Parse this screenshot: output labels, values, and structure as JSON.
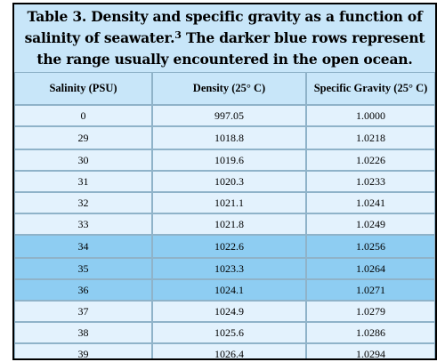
{
  "caption": {
    "line1": "Table 3.  Density and specific gravity as a function of",
    "line2_pre": "salinity of seawater.",
    "line2_ref": "3",
    "line2_post": " The darker blue rows represent",
    "line3": "the range usually encountered in the open ocean."
  },
  "headers": {
    "salinity": "Salinity (PSU)",
    "density": "Density (25° C)",
    "gravity": "Specific Gravity (25° C)"
  },
  "rows": [
    {
      "salinity": "0",
      "density": "997.05",
      "gravity": "1.0000",
      "dark": false
    },
    {
      "salinity": "29",
      "density": "1018.8",
      "gravity": "1.0218",
      "dark": false
    },
    {
      "salinity": "30",
      "density": "1019.6",
      "gravity": "1.0226",
      "dark": false
    },
    {
      "salinity": "31",
      "density": "1020.3",
      "gravity": "1.0233",
      "dark": false
    },
    {
      "salinity": "32",
      "density": "1021.1",
      "gravity": "1.0241",
      "dark": false
    },
    {
      "salinity": "33",
      "density": "1021.8",
      "gravity": "1.0249",
      "dark": false
    },
    {
      "salinity": "34",
      "density": "1022.6",
      "gravity": "1.0256",
      "dark": true
    },
    {
      "salinity": "35",
      "density": "1023.3",
      "gravity": "1.0264",
      "dark": true
    },
    {
      "salinity": "36",
      "density": "1024.1",
      "gravity": "1.0271",
      "dark": true
    },
    {
      "salinity": "37",
      "density": "1024.9",
      "gravity": "1.0279",
      "dark": false
    },
    {
      "salinity": "38",
      "density": "1025.6",
      "gravity": "1.0286",
      "dark": false
    },
    {
      "salinity": "39",
      "density": "1026.4",
      "gravity": "1.0294",
      "dark": false
    }
  ],
  "colors": {
    "light_row": "#e3f2fd",
    "dark_row": "#8ecdf2",
    "header": "#c8e6f9"
  }
}
